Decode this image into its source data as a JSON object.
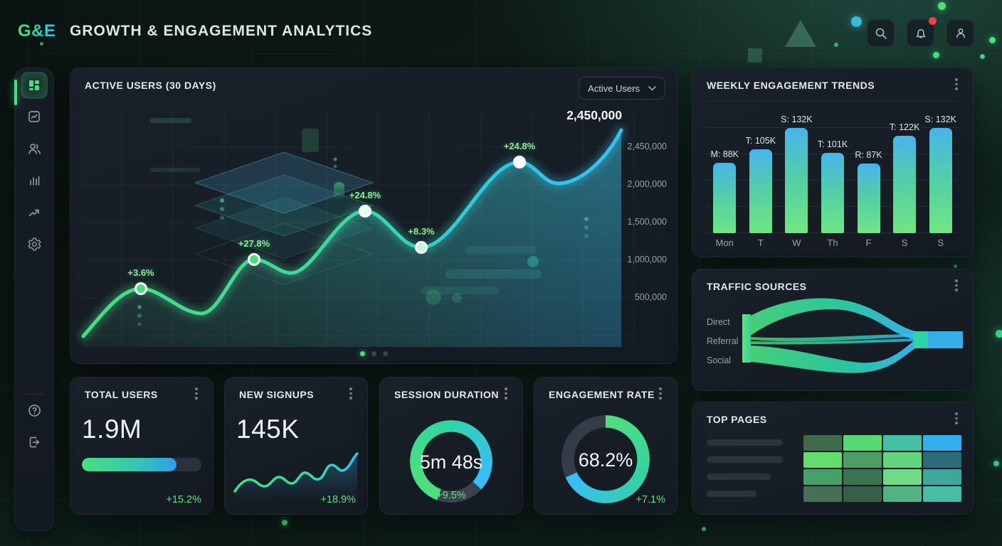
{
  "header": {
    "logo": "G&E",
    "title": "GROWTH & ENGAGEMENT ANALYTICS",
    "actions": [
      {
        "icon": "search-icon"
      },
      {
        "icon": "bell-icon",
        "has_notification": true
      },
      {
        "icon": "user-icon"
      }
    ]
  },
  "sidebar": {
    "items": [
      {
        "icon": "dashboard-grid-icon",
        "active": true
      },
      {
        "icon": "chart-square-icon",
        "active": false
      },
      {
        "icon": "users-icon",
        "active": false
      },
      {
        "icon": "bar-chart-icon",
        "active": false
      },
      {
        "icon": "trend-up-icon",
        "active": false
      },
      {
        "icon": "settings-gear-icon",
        "active": false
      }
    ],
    "footer_items": [
      {
        "icon": "help-icon"
      },
      {
        "icon": "logout-icon"
      }
    ]
  },
  "main_chart": {
    "title": "ACTIVE USERS (30 DAYS)",
    "dropdown_value": "Active Users",
    "peak_value": "2,450,000",
    "y_axis": [
      "2,450,000",
      "2,000,000",
      "1,500,000",
      "1,000,000",
      "500,000"
    ],
    "annotations": [
      "+3.6%",
      "+27.8%",
      "+24.8%",
      "+8.3%",
      "+24.8%"
    ],
    "pagination_dots": 3
  },
  "panels": {
    "weekly": {
      "title": "WEEKLY ENGAGEMENT TRENDS"
    },
    "traffic": {
      "title": "TRAFFIC SOURCES",
      "sources": [
        "Direct",
        "Referral",
        "Social"
      ]
    },
    "top_pages": {
      "title": "TOP PAGES"
    }
  },
  "stats": [
    {
      "title": "TOTAL USERS",
      "value": "1.9M",
      "change": "+15.2%",
      "widget": "progress",
      "percent": 79
    },
    {
      "title": "NEW SIGNUPS",
      "value": "145K",
      "change": "+18.9%",
      "widget": "sparkline"
    },
    {
      "title": "SESSION DURATION",
      "value": "5m 48s",
      "change": "+9.5%",
      "widget": "gauge",
      "start_deg": 200,
      "sweep_deg": 293
    },
    {
      "title": "ENGAGEMENT RATE",
      "value": "68.2%",
      "change": "+7.1%",
      "widget": "donut",
      "percent": 68.2
    }
  ],
  "chart_data": [
    {
      "id": "active-users",
      "type": "line",
      "title": "ACTIVE USERS (30 DAYS)",
      "ylabel": "Active Users",
      "y_ticks": [
        2450000,
        2000000,
        1500000,
        1000000,
        500000
      ],
      "ylim": [
        0,
        2450000
      ],
      "end_value": 2450000,
      "annotated_points": [
        {
          "label": "+3.6%"
        },
        {
          "label": "+27.8%"
        },
        {
          "label": "+24.8%"
        },
        {
          "label": "+8.3%"
        },
        {
          "label": "+24.8%"
        }
      ],
      "legend_position": "none",
      "grid": true,
      "style": "glowing gradient line green to blue with area fill, rising wavy trend ending at 2,450,000"
    },
    {
      "id": "weekly",
      "type": "bar",
      "title": "WEEKLY ENGAGEMENT TRENDS",
      "categories": [
        "Mon",
        "T",
        "W",
        "Th",
        "F",
        "S",
        "S"
      ],
      "values": [
        88,
        105,
        132,
        101,
        87,
        122,
        132
      ],
      "value_labels": [
        "M: 88K",
        "T: 105K",
        "S: 132K",
        "T: 101K",
        "R: 87K",
        "T: 122K",
        "S: 132K"
      ],
      "unit": "K",
      "ylim": [
        0,
        150
      ],
      "grid": true,
      "legend_position": "none"
    },
    {
      "id": "traffic",
      "type": "area",
      "subtype": "sankey-flow",
      "title": "TRAFFIC SOURCES",
      "categories": [
        "Direct",
        "Referral",
        "Social"
      ],
      "legend_position": "left",
      "note": "three source flows merge into a single output stream, green to blue gradient"
    },
    {
      "id": "top-pages",
      "type": "heatmap",
      "title": "TOP PAGES",
      "rows": 4,
      "cols": 4,
      "colors": [
        [
          "#3f6b4c",
          "#57d871",
          "#43bfa4",
          "#35aeee"
        ],
        [
          "#64dc6e",
          "#4f9d64",
          "#63d57f",
          "#2f6a7a"
        ],
        [
          "#47a067",
          "#3a7350",
          "#70da87",
          "#3da69d"
        ],
        [
          "#466f56",
          "#375f48",
          "#52b282",
          "#47bda4"
        ]
      ]
    },
    {
      "id": "signups-spark",
      "type": "line",
      "title": "NEW SIGNUPS sparkline",
      "values": [
        18,
        30,
        26,
        33,
        28,
        40,
        34,
        50,
        44,
        62
      ],
      "note": "relative values, rising wavy trend, green to blue"
    }
  ],
  "colors": {
    "accent_green": "#4ade80",
    "accent_teal": "#2dd4a8",
    "accent_blue": "#38bdf8",
    "positive": "#5fe184",
    "notification_red": "#ef4444",
    "card_bg": "#161d25",
    "muted_text": "#97a1ac"
  }
}
